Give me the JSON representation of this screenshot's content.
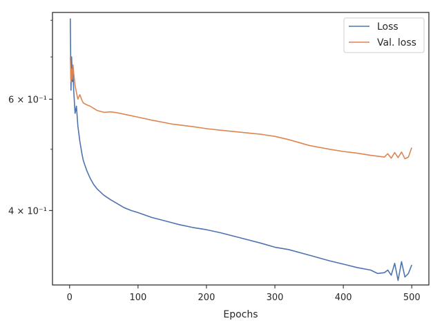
{
  "chart_data": {
    "type": "line",
    "title": "",
    "xlabel": "Epochs",
    "ylabel": "",
    "xlim": [
      -25,
      525
    ],
    "ylim": [
      0.305,
      0.823
    ],
    "yscale": "log",
    "grid": false,
    "legend_position": "top-right",
    "x_ticks": [
      0,
      100,
      200,
      300,
      400,
      500
    ],
    "x_tick_labels": [
      "0",
      "100",
      "200",
      "300",
      "400",
      "500"
    ],
    "y_major_ticks": [
      0.4,
      0.6
    ],
    "y_major_tick_labels": [
      "4 × 10⁻¹",
      "6 × 10⁻¹"
    ],
    "y_minor_ticks": [
      0.5,
      0.7,
      0.8
    ],
    "series": [
      {
        "name": "Loss",
        "color": "#4c72b0",
        "x": [
          1,
          2,
          3,
          4,
          5,
          6,
          8,
          10,
          12,
          15,
          18,
          20,
          25,
          30,
          35,
          40,
          50,
          60,
          70,
          80,
          90,
          100,
          120,
          140,
          160,
          180,
          200,
          220,
          250,
          280,
          300,
          320,
          350,
          380,
          400,
          420,
          440,
          450,
          460,
          465,
          470,
          475,
          480,
          485,
          490,
          495,
          500
        ],
        "y": [
          0.805,
          0.62,
          0.7,
          0.64,
          0.66,
          0.62,
          0.57,
          0.585,
          0.545,
          0.515,
          0.492,
          0.48,
          0.463,
          0.45,
          0.44,
          0.433,
          0.423,
          0.416,
          0.41,
          0.404,
          0.4,
          0.397,
          0.39,
          0.385,
          0.38,
          0.376,
          0.373,
          0.369,
          0.362,
          0.355,
          0.35,
          0.347,
          0.34,
          0.333,
          0.329,
          0.325,
          0.322,
          0.318,
          0.319,
          0.322,
          0.316,
          0.33,
          0.31,
          0.332,
          0.314,
          0.318,
          0.328
        ]
      },
      {
        "name": "Val. loss",
        "color": "#dd8452",
        "x": [
          1,
          2,
          3,
          4,
          5,
          6,
          8,
          10,
          12,
          15,
          18,
          20,
          25,
          30,
          40,
          50,
          60,
          70,
          80,
          100,
          120,
          150,
          180,
          200,
          220,
          250,
          280,
          300,
          320,
          350,
          380,
          400,
          420,
          440,
          460,
          465,
          470,
          475,
          480,
          485,
          490,
          495,
          500
        ],
        "y": [
          0.7,
          0.64,
          0.67,
          0.645,
          0.68,
          0.66,
          0.63,
          0.615,
          0.6,
          0.61,
          0.598,
          0.592,
          0.588,
          0.585,
          0.576,
          0.572,
          0.573,
          0.571,
          0.568,
          0.562,
          0.556,
          0.548,
          0.543,
          0.539,
          0.536,
          0.532,
          0.528,
          0.524,
          0.518,
          0.507,
          0.5,
          0.496,
          0.493,
          0.489,
          0.486,
          0.492,
          0.484,
          0.494,
          0.485,
          0.495,
          0.483,
          0.486,
          0.503
        ]
      }
    ]
  }
}
